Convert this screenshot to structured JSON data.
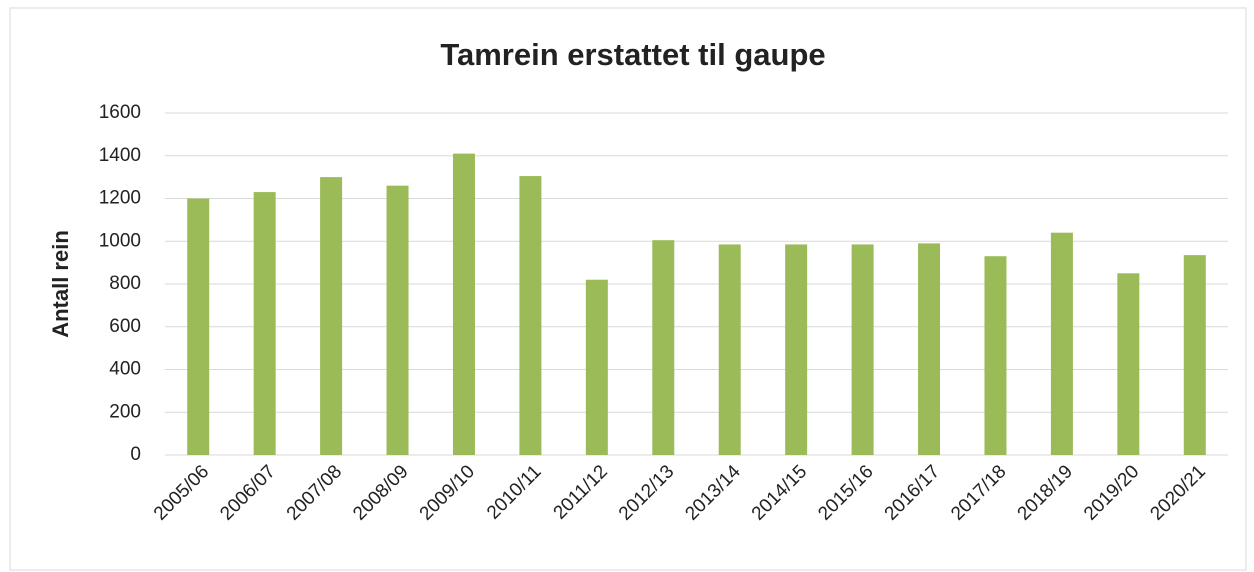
{
  "chart_data": {
    "type": "bar",
    "title": "Tamrein erstattet til gaupe",
    "y_label": "Antall rein",
    "categories": [
      "2005/06",
      "2006/07",
      "2007/08",
      "2008/09",
      "2009/10",
      "2010/11",
      "2011/12",
      "2012/13",
      "2013/14",
      "2014/15",
      "2015/16",
      "2016/17",
      "2017/18",
      "2018/19",
      "2019/20",
      "2020/21"
    ],
    "values": [
      1200,
      1230,
      1300,
      1260,
      1410,
      1305,
      820,
      1005,
      985,
      985,
      985,
      990,
      930,
      1040,
      850,
      935
    ],
    "color": "#9bbb59",
    "ylim": [
      0,
      1600
    ],
    "yticks": [
      0,
      200,
      400,
      600,
      800,
      1000,
      1200,
      1400,
      1600
    ],
    "grid": true
  }
}
